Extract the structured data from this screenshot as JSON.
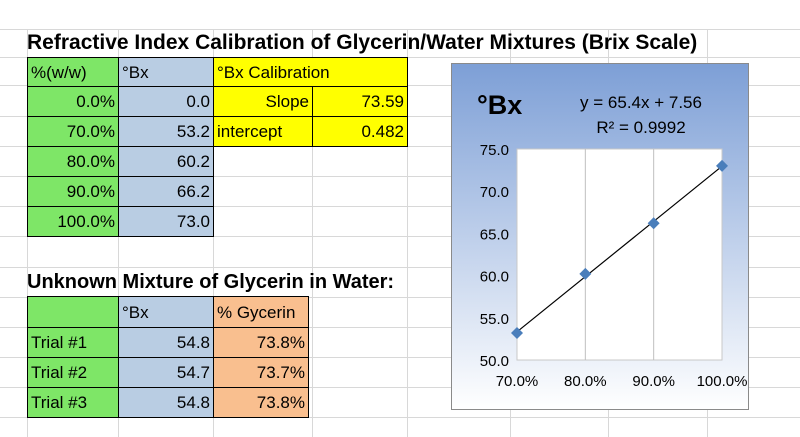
{
  "sheet": {
    "title": "Refractive Index Calibration of Glycerin/Water Mixtures (Brix Scale)",
    "calibration": {
      "headers": [
        "%(w/w)",
        "°Bx"
      ],
      "rows": [
        [
          "0.0%",
          "0.0"
        ],
        [
          "70.0%",
          "53.2"
        ],
        [
          "80.0%",
          "60.2"
        ],
        [
          "90.0%",
          "66.2"
        ],
        [
          "100.0%",
          "73.0"
        ]
      ]
    },
    "fit": {
      "header": "°Bx Calibration",
      "slope_label": "Slope",
      "slope_value": "73.59",
      "intercept_label": "intercept",
      "intercept_value": "0.482"
    },
    "unknown": {
      "title": "Unknown Mixture of Glycerin in Water:",
      "headers": [
        "",
        "°Bx",
        "% Gycerin"
      ],
      "rows": [
        [
          "Trial #1",
          "54.8",
          "73.8%"
        ],
        [
          "Trial #2",
          "54.7",
          "73.7%"
        ],
        [
          "Trial #3",
          "54.8",
          "73.8%"
        ]
      ]
    }
  },
  "colors": {
    "green": "#7ee667",
    "blue": "#b9cde3",
    "yellow": "#ffff00",
    "peach": "#f9bf8f",
    "chart_bg_top": "#7d9fd6",
    "chart_bg_bottom": "#ffffff",
    "marker": "#4a7ebb"
  },
  "chart_data": {
    "type": "scatter",
    "title": "°Bx",
    "x_label_format": "percent",
    "x": [
      0.7,
      0.8,
      0.9,
      1.0
    ],
    "y": [
      53.2,
      60.2,
      66.2,
      73.0
    ],
    "xlim": [
      0.7,
      1.0
    ],
    "ylim": [
      50.0,
      75.0
    ],
    "x_ticks": [
      "70.0%",
      "80.0%",
      "90.0%",
      "100.0%"
    ],
    "y_ticks": [
      "50.0",
      "55.0",
      "60.0",
      "65.0",
      "70.0",
      "75.0"
    ],
    "trendline": {
      "slope": 65.4,
      "intercept": 7.56
    },
    "equation": "y = 65.4x + 7.56",
    "r_squared": "R² = 0.9992",
    "grid": "vertical",
    "marker": "diamond"
  }
}
